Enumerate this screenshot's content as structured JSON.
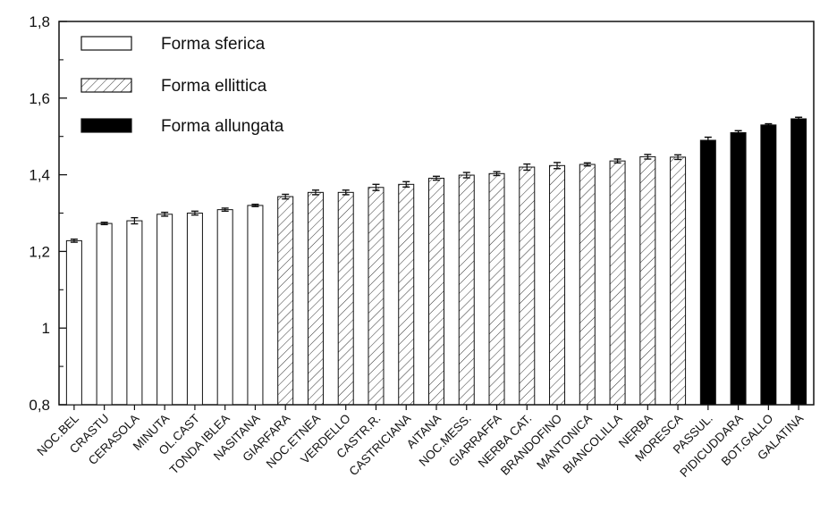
{
  "chart_data": {
    "type": "bar",
    "title": "",
    "xlabel": "",
    "ylabel": "",
    "ylim": [
      0.8,
      1.8
    ],
    "y_ticks": [
      "0,8",
      "1",
      "1,2",
      "1,4",
      "1,6",
      "1,8"
    ],
    "y_tick_values": [
      0.8,
      1.0,
      1.2,
      1.4,
      1.6,
      1.8
    ],
    "grid": false,
    "legend_position": "top-left",
    "categories": [
      "NOC.BEL",
      "CRASTU",
      "CERASOLA",
      "MINUTA",
      "OL.CAST",
      "TONDA IBLEA",
      "NASITANA",
      "GIARFARA",
      "NOC.ETNEA",
      "VERDELLO",
      "CASTR.R.",
      "CASTRICIANA",
      "AITANA",
      "NOC.MESS.",
      "GIARRAFFA",
      "NERBA CAT.",
      "BRANDOFINO",
      "MANTONICA",
      "BIANCOLILLA",
      "NERBA",
      "MORESCA",
      "PASSUL.",
      "PIDICUDDARA",
      "BOT.GALLO",
      "GALATINA"
    ],
    "values": [
      1.228,
      1.273,
      1.28,
      1.297,
      1.3,
      1.309,
      1.32,
      1.343,
      1.354,
      1.354,
      1.367,
      1.375,
      1.391,
      1.399,
      1.403,
      1.42,
      1.424,
      1.427,
      1.436,
      1.447,
      1.446,
      1.49,
      1.51,
      1.53,
      1.546
    ],
    "errors": [
      0.004,
      0.003,
      0.008,
      0.005,
      0.005,
      0.004,
      0.003,
      0.006,
      0.006,
      0.006,
      0.008,
      0.007,
      0.005,
      0.007,
      0.005,
      0.008,
      0.008,
      0.004,
      0.005,
      0.006,
      0.006,
      0.008,
      0.005,
      0.003,
      0.004
    ],
    "groups": [
      0,
      0,
      0,
      0,
      0,
      0,
      0,
      1,
      1,
      1,
      1,
      1,
      1,
      1,
      1,
      1,
      1,
      1,
      1,
      1,
      1,
      2,
      2,
      2,
      2
    ],
    "legend": [
      {
        "name": "Forma sferica",
        "style": "open"
      },
      {
        "name": "Forma ellittica",
        "style": "hatched"
      },
      {
        "name": "Forma allungata",
        "style": "solid"
      }
    ],
    "colors": {
      "bar_stroke": "#111111",
      "solid_fill": "#000000",
      "open_fill": "#ffffff"
    }
  }
}
